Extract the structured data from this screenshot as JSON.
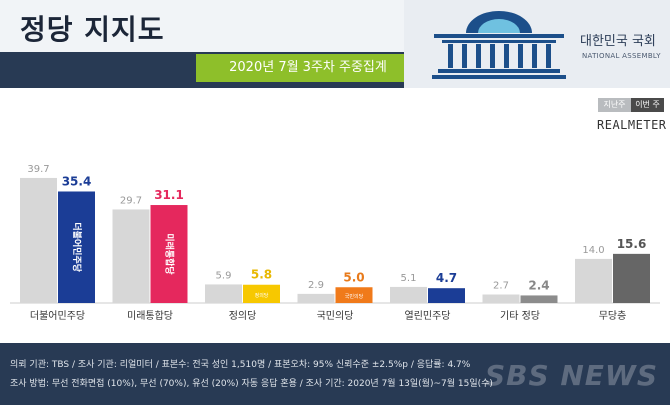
{
  "header": {
    "title": "정당 지지도",
    "subtitle": "2020년 7월 3주차 주중집계",
    "assembly_name": "대한민국 국회",
    "assembly_name_en": "NATIONAL ASSEMBLY"
  },
  "legend": {
    "prev": "지난주",
    "curr": "이번 주"
  },
  "source": "REALMETER",
  "colors": {
    "prev_bar": "#d7d7d7",
    "header_bg": "#283a54",
    "accent_green": "#8ebf2a"
  },
  "chart_data": {
    "type": "bar",
    "title": "정당 지지도",
    "subtitle": "2020년 7월 3주차 주중집계",
    "categories": [
      "더불어민주당",
      "미래통합당",
      "정의당",
      "국민의당",
      "열린민주당",
      "기타 정당",
      "무당층"
    ],
    "series": [
      {
        "name": "지난주",
        "values": [
          39.7,
          29.7,
          5.9,
          2.9,
          5.1,
          2.7,
          14.0
        ]
      },
      {
        "name": "이번 주",
        "values": [
          35.4,
          31.1,
          5.8,
          5.0,
          4.7,
          2.4,
          15.6
        ]
      }
    ],
    "current_colors": [
      "#1b3d96",
      "#e5285d",
      "#f7c800",
      "#f07a1a",
      "#1b3d96",
      "#8c8c8c",
      "#666666"
    ],
    "label_colors": [
      "#1b3d96",
      "#e5285d",
      "#e8b800",
      "#e87a1a",
      "#1b3d96",
      "#888888",
      "#555555"
    ],
    "party_marks": [
      "더불어민주당",
      "미래통합당",
      "정의당",
      "국민의당",
      "",
      "",
      ""
    ],
    "ylim": [
      0,
      42
    ],
    "grid": false,
    "legend_position": "top-right"
  },
  "footer": {
    "line1": "의뢰 기관: TBS / 조사 기관: 리얼미터 / 표본수: 전국 성인 1,510명 / 표본오차: 95% 신뢰수준 ±2.5%p / 응답률: 4.7%",
    "line2": "조사 방법: 무선 전화면접 (10%), 무선 (70%), 유선 (20%) 자동 응답 혼용 / 조사 기간: 2020년 7월 13일(월)~7월 15일(수)",
    "watermark": "SBS NEWS"
  }
}
